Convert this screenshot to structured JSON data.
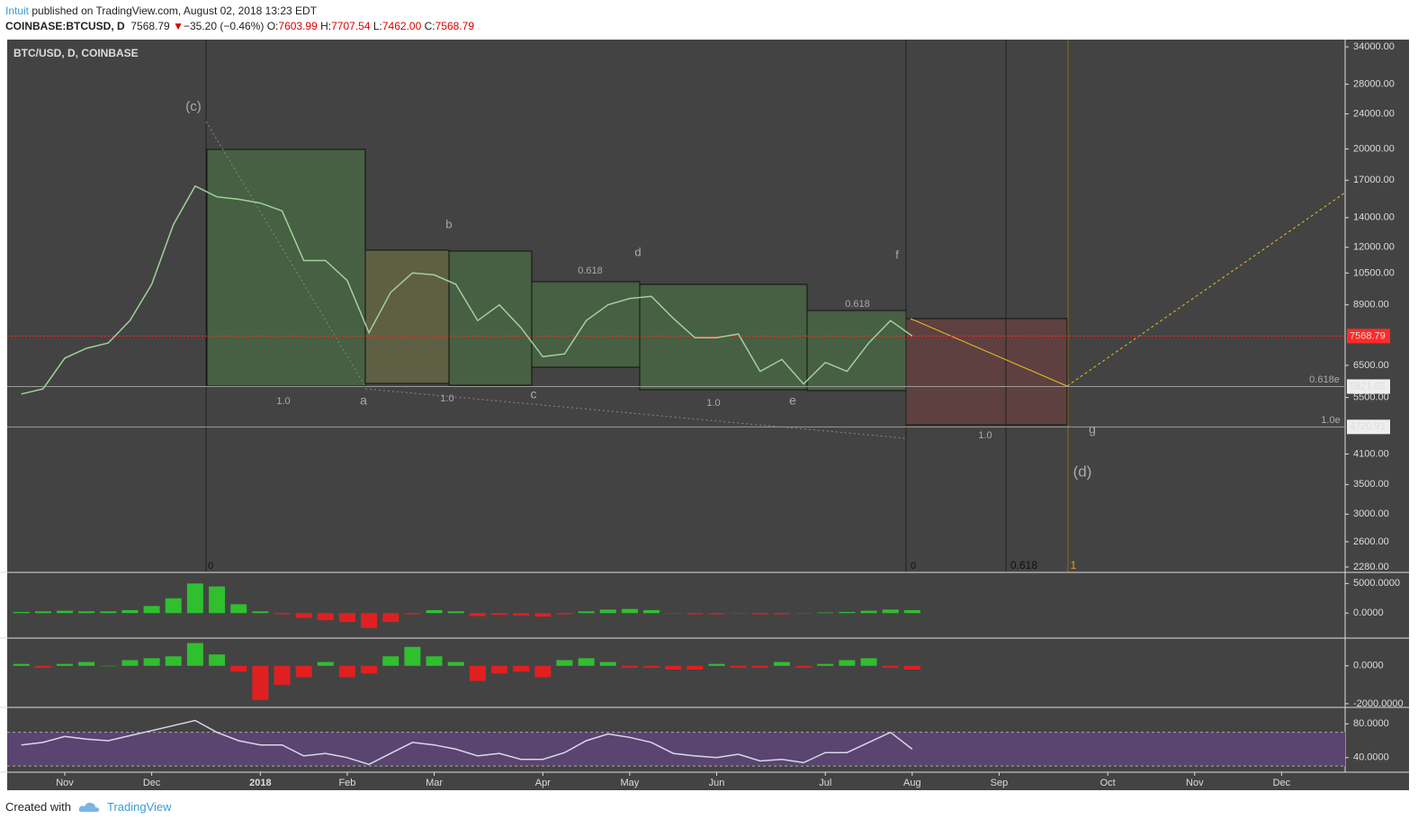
{
  "header": {
    "author": "Intuit",
    "published": "published on TradingView.com, August 02, 2018 13:23 EDT",
    "symbol": "COINBASE:BTCUSD, D",
    "last": "7568.79",
    "arrow": "▼",
    "change": "−35.20 (−0.46%)",
    "o_label": "O:",
    "o": "7603.99",
    "h_label": "H:",
    "h": "7707.54",
    "l_label": "L:",
    "l": "7462.00",
    "c_label": "C:",
    "c": "7568.79"
  },
  "chart_data": {
    "type": "line",
    "title": "BTC/USD, D, COINBASE",
    "log_scale": true,
    "color": "#9fd29a",
    "categories": [
      null,
      null,
      "Nov",
      null,
      null,
      null,
      "Dec",
      null,
      null,
      null,
      null,
      "2018",
      null,
      null,
      null,
      "Feb",
      null,
      null,
      null,
      "Mar",
      null,
      null,
      null,
      null,
      "Apr",
      null,
      null,
      null,
      "May",
      null,
      null,
      null,
      "Jun",
      null,
      null,
      null,
      null,
      "Jul",
      null,
      null,
      null,
      "Aug",
      null,
      null,
      null,
      "Sep",
      null,
      null,
      null,
      null,
      "Oct",
      null,
      null,
      null,
      "Nov",
      null,
      null,
      null,
      "Dec",
      null,
      null
    ],
    "values": [
      5600,
      5750,
      6750,
      7100,
      7300,
      8200,
      9900,
      13500,
      16500,
      15600,
      15400,
      15100,
      14500,
      11200,
      11200,
      10100,
      7700,
      9500,
      10500,
      10400,
      9900,
      8200,
      8900,
      7900,
      6800,
      6900,
      8200,
      8900,
      9200,
      9300,
      8300,
      7500,
      7500,
      7650,
      6300,
      6700,
      5900,
      6600,
      6300,
      7300,
      8200,
      7568.79,
      null,
      null,
      null,
      null,
      null,
      null,
      null,
      null,
      null,
      null,
      null,
      null,
      null,
      null,
      null,
      null,
      null,
      null,
      null
    ],
    "ylim": [
      2217,
      35300
    ],
    "yticks": [
      {
        "value": 34000,
        "label": "34000.00"
      },
      {
        "value": 28000,
        "label": "28000.00"
      },
      {
        "value": 24000,
        "label": "24000.00"
      },
      {
        "value": 20000,
        "label": "20000.00"
      },
      {
        "value": 17000,
        "label": "17000.00"
      },
      {
        "value": 14000,
        "label": "14000.00"
      },
      {
        "value": 12000,
        "label": "12000.00"
      },
      {
        "value": 10500,
        "label": "10500.00"
      },
      {
        "value": 8900,
        "label": "8900.00"
      },
      {
        "value": 6500,
        "label": "6500.00"
      },
      {
        "value": 5500,
        "label": "5500.00"
      },
      {
        "value": 4100,
        "label": "4100.00"
      },
      {
        "value": 3500,
        "label": "3500.00"
      },
      {
        "value": 3000,
        "label": "3000.00"
      },
      {
        "value": 2600,
        "label": "2600.00"
      },
      {
        "value": 2280,
        "label": "2280.00"
      }
    ],
    "price_lines": [
      {
        "value": 7568.79,
        "color": "#ff2a2a"
      },
      {
        "value": 5821.65,
        "color": "#9a9a9a"
      },
      {
        "value": 4720.91,
        "color": "#9a9a9a"
      }
    ],
    "annotations": [
      "(c)",
      "b",
      "d",
      "f",
      "a",
      "c",
      "e",
      "g",
      "(d)",
      "0.618",
      "0.618",
      "1.0",
      "1.0",
      "1.0",
      "1.0",
      "0.618e",
      "1.0e",
      "0",
      "0",
      "0.618",
      "1"
    ],
    "panels": [
      {
        "type": "bar",
        "color": "#2fbf2f",
        "negative_color": "#e02020",
        "ylim": [
          -4219,
          6875
        ],
        "yticks": [
          {
            "value": 5000,
            "label": "5000.0000"
          },
          {
            "value": 0,
            "label": "0.0000"
          }
        ],
        "values": [
          200,
          300,
          400,
          300,
          300,
          500,
          1200,
          2500,
          5000,
          4500,
          1500,
          300,
          -200,
          -800,
          -1200,
          -1500,
          -2500,
          -1500,
          -200,
          500,
          300,
          -500,
          -300,
          -400,
          -600,
          -200,
          300,
          600,
          700,
          500,
          -100,
          -200,
          -200,
          -100,
          -200,
          -200,
          -100,
          100,
          200,
          400,
          600,
          500,
          null,
          null,
          null,
          null,
          null,
          null,
          null,
          null,
          null,
          null,
          null,
          null,
          null,
          null,
          null,
          null,
          null,
          null,
          null
        ]
      },
      {
        "type": "bar",
        "color": "#2fbf2f",
        "negative_color": "#e02020",
        "ylim": [
          -2195,
          1463
        ],
        "yticks": [
          {
            "value": 0,
            "label": "0.0000"
          },
          {
            "value": -2000,
            "label": "-2000.0000"
          }
        ],
        "values": [
          100,
          -100,
          100,
          200,
          0,
          300,
          400,
          500,
          1200,
          600,
          -300,
          -1800,
          -1000,
          -600,
          200,
          -600,
          -400,
          500,
          1000,
          500,
          200,
          -800,
          -400,
          -300,
          -600,
          300,
          400,
          200,
          -100,
          -100,
          -200,
          -200,
          100,
          -100,
          -100,
          200,
          -100,
          100,
          300,
          400,
          -100,
          -200,
          null,
          null,
          null,
          null,
          null,
          null,
          null,
          null,
          null,
          null,
          null,
          null,
          null,
          null,
          null,
          null,
          null,
          null,
          null
        ]
      },
      {
        "type": "line",
        "color": "#d8d8e8",
        "band": [
          30,
          70
        ],
        "band_color": "#5a4470",
        "ylim": [
          22.7,
          99.5
        ],
        "yticks": [
          {
            "value": 80,
            "label": "80.0000"
          },
          {
            "value": 40,
            "label": "40.0000"
          }
        ],
        "values": [
          55,
          58,
          65,
          62,
          60,
          66,
          72,
          78,
          84,
          70,
          60,
          55,
          55,
          42,
          45,
          40,
          32,
          45,
          58,
          55,
          50,
          42,
          45,
          38,
          38,
          46,
          60,
          68,
          64,
          58,
          45,
          42,
          40,
          44,
          36,
          38,
          34,
          46,
          46,
          58,
          70,
          50,
          null,
          null,
          null,
          null,
          null,
          null,
          null,
          null,
          null,
          null,
          null,
          null,
          null,
          null,
          null,
          null,
          null,
          null,
          null
        ]
      }
    ]
  },
  "footer": {
    "created": "Created with",
    "brand": "TradingView"
  }
}
